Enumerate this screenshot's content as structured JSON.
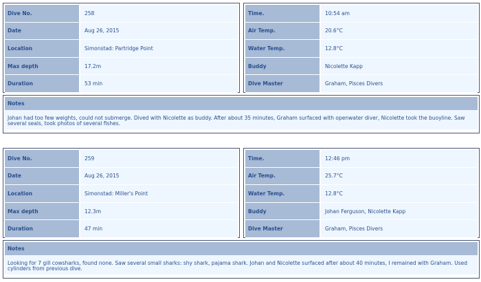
{
  "dives": [
    {
      "left": [
        {
          "label": "Dive No.",
          "value": "258"
        },
        {
          "label": "Date",
          "value": "Aug 26, 2015"
        },
        {
          "label": "Location",
          "value": "Simonstad: Partridge Point"
        },
        {
          "label": "Max depth",
          "value": "17.2m"
        },
        {
          "label": "Duration",
          "value": "53 min"
        }
      ],
      "right": [
        {
          "label": "Time.",
          "value": "10:54 am"
        },
        {
          "label": "Air Temp.",
          "value": "20.6°C"
        },
        {
          "label": "Water Temp.",
          "value": "12.8°C"
        },
        {
          "label": "Buddy",
          "value": "Nicolette Kapp"
        },
        {
          "label": "Dive Master",
          "value": "Graham, Pisces Divers"
        }
      ],
      "notes_label": "Notes",
      "notes": "Johan had too few weights, could not submerge. Dived with Nicolette as buddy. After about 35 minutes, Graham surfaced with openwater diver, Nicolette took the buoyline. Saw several seals, took photos of several fishes."
    },
    {
      "left": [
        {
          "label": "Dive No.",
          "value": "259"
        },
        {
          "label": "Date",
          "value": "Aug 26, 2015"
        },
        {
          "label": "Location",
          "value": "Simonstad: Miller's Point"
        },
        {
          "label": "Max depth",
          "value": "12.3m"
        },
        {
          "label": "Duration",
          "value": "47 min"
        }
      ],
      "right": [
        {
          "label": "Time.",
          "value": "12:46 pm"
        },
        {
          "label": "Air Temp.",
          "value": "25.7°C"
        },
        {
          "label": "Water Temp.",
          "value": "12.8°C"
        },
        {
          "label": "Buddy",
          "value": "Johan Ferguson, Nicolette Kapp"
        },
        {
          "label": "Dive Master",
          "value": "Graham, Pisces Divers"
        }
      ],
      "notes_label": "Notes",
      "notes": "Looking for 7 gill cowsharks, found none. Saw several small sharks: shy shark, pajama shark. Johan and Nicolette surfaced after about 40 minutes, I remained with Graham. Used cylinders from previous dive."
    }
  ]
}
